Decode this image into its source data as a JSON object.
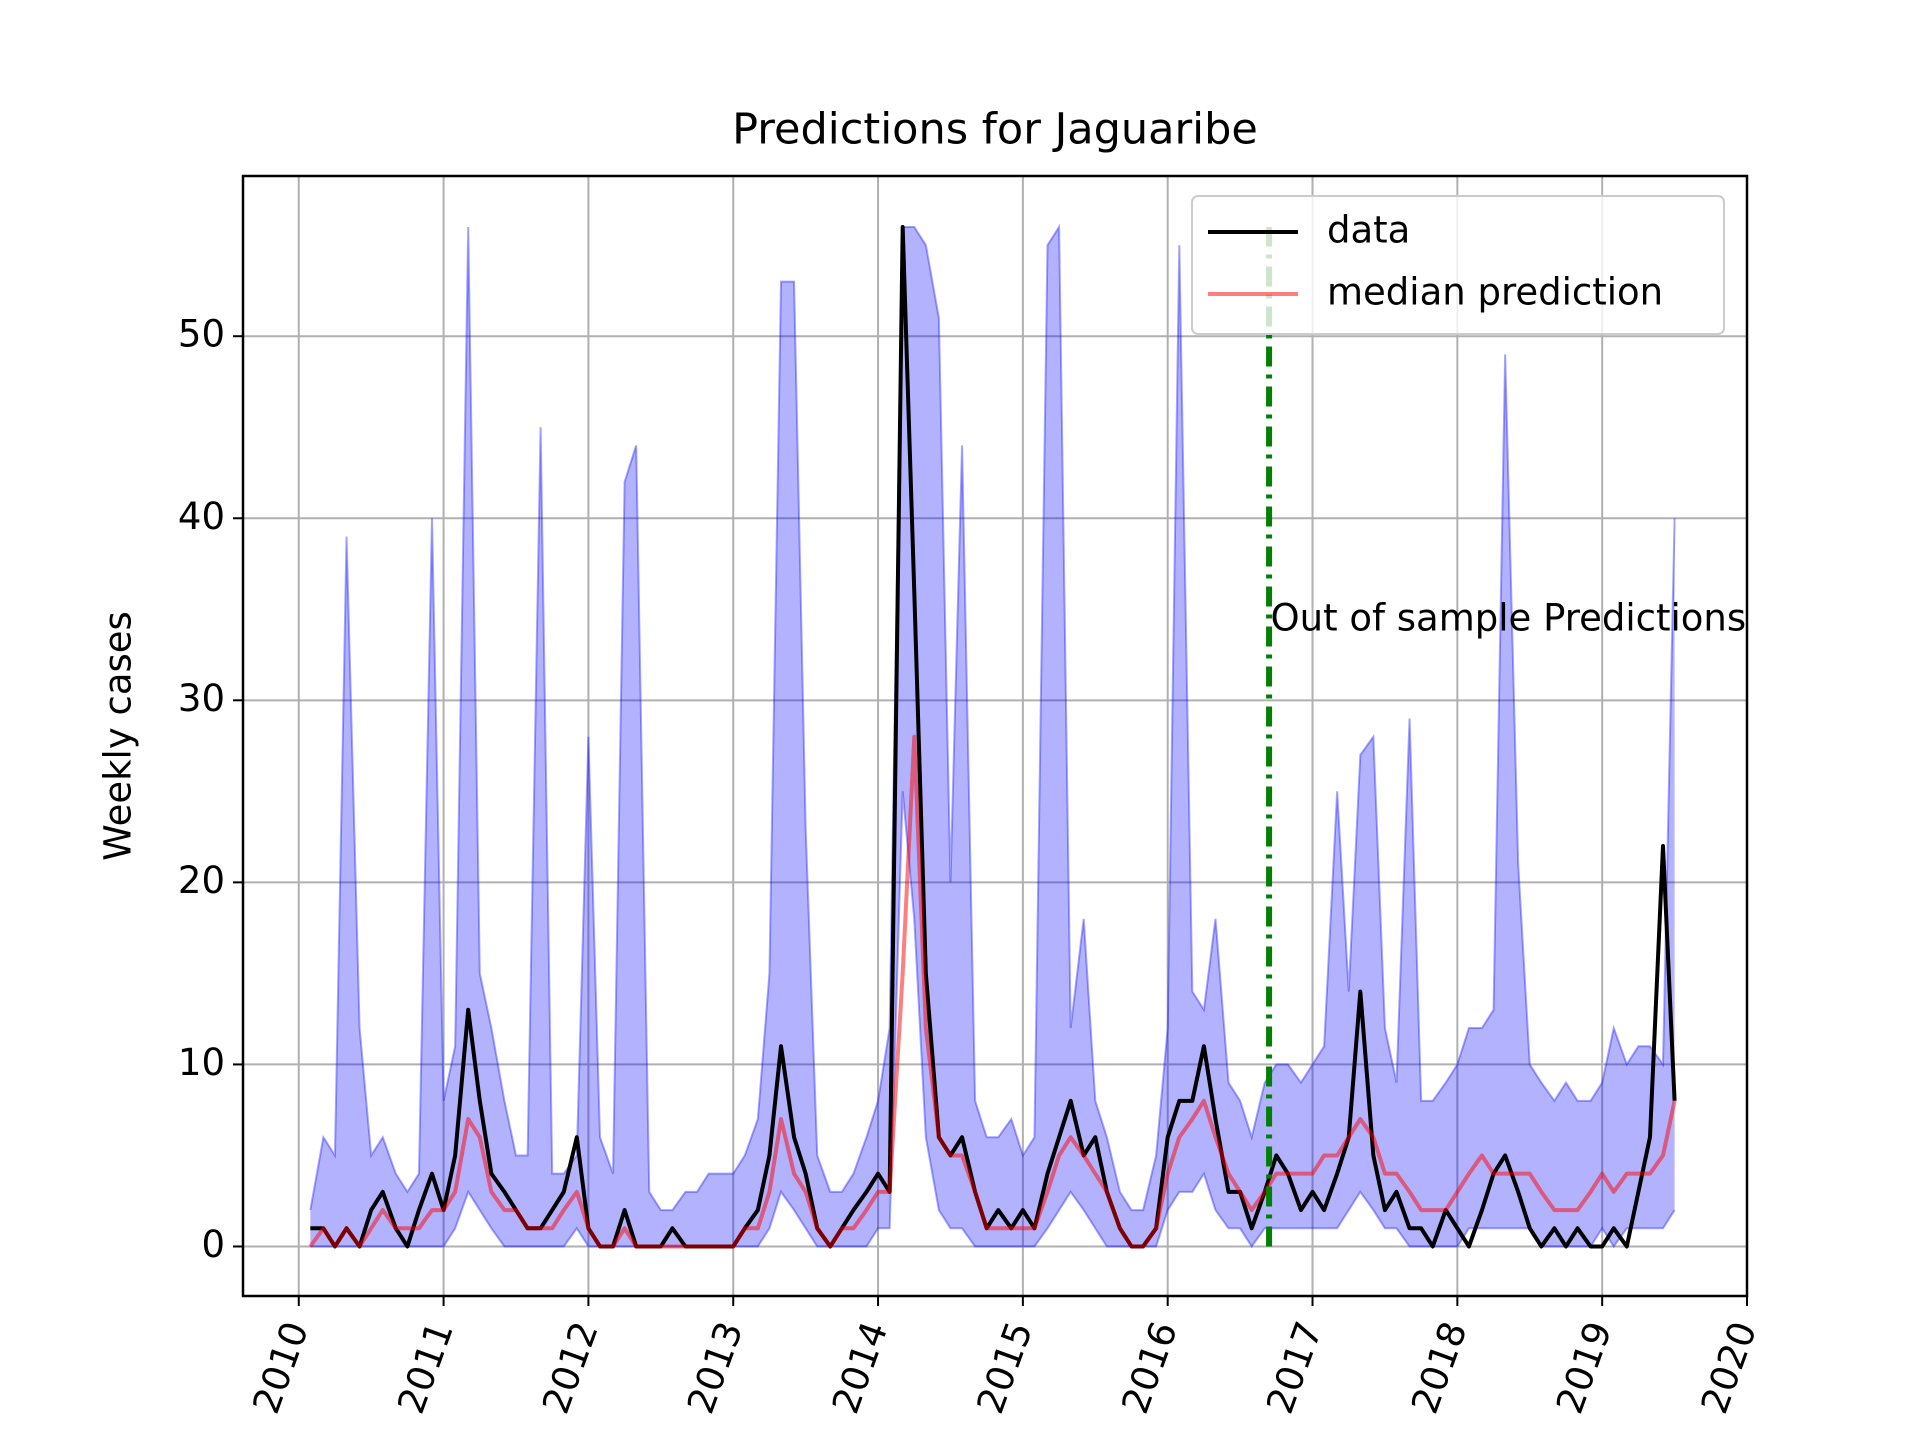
{
  "chart_data": {
    "type": "line",
    "title": "Predictions for Jaguaribe",
    "y_label": "Weekly cases",
    "annotation": {
      "text": "Out of sample Predictions",
      "x": 2016.71,
      "y": 34.4
    },
    "x": [
      2010.08,
      2010.17,
      2010.25,
      2010.33,
      2010.42,
      2010.5,
      2010.58,
      2010.67,
      2010.75,
      2010.83,
      2010.92,
      2011.0,
      2011.08,
      2011.17,
      2011.25,
      2011.33,
      2011.42,
      2011.5,
      2011.58,
      2011.67,
      2011.75,
      2011.83,
      2011.92,
      2012.0,
      2012.08,
      2012.17,
      2012.25,
      2012.33,
      2012.42,
      2012.5,
      2012.58,
      2012.67,
      2012.75,
      2012.83,
      2012.92,
      2013.0,
      2013.08,
      2013.17,
      2013.25,
      2013.33,
      2013.42,
      2013.5,
      2013.58,
      2013.67,
      2013.75,
      2013.83,
      2013.92,
      2014.0,
      2014.08,
      2014.17,
      2014.25,
      2014.33,
      2014.42,
      2014.5,
      2014.58,
      2014.67,
      2014.75,
      2014.83,
      2014.92,
      2015.0,
      2015.08,
      2015.17,
      2015.25,
      2015.33,
      2015.42,
      2015.5,
      2015.58,
      2015.67,
      2015.75,
      2015.83,
      2015.92,
      2016.0,
      2016.08,
      2016.17,
      2016.25,
      2016.33,
      2016.42,
      2016.5,
      2016.58,
      2016.67,
      2016.75,
      2016.83,
      2016.92,
      2017.0,
      2017.08,
      2017.17,
      2017.25,
      2017.33,
      2017.42,
      2017.5,
      2017.58,
      2017.67,
      2017.75,
      2017.83,
      2017.92,
      2018.0,
      2018.08,
      2018.17,
      2018.25,
      2018.33,
      2018.42,
      2018.5,
      2018.58,
      2018.67,
      2018.75,
      2018.83,
      2018.92,
      2019.0,
      2019.08,
      2019.17,
      2019.25,
      2019.33,
      2019.42,
      2019.5
    ],
    "band": {
      "color": "#0000ff",
      "lower": [
        0,
        0,
        0,
        0,
        0,
        0,
        0,
        0,
        0,
        0,
        0,
        0,
        1,
        3,
        2,
        1,
        0,
        0,
        0,
        0,
        0,
        0,
        1,
        0,
        0,
        0,
        0,
        0,
        0,
        0,
        0,
        0,
        0,
        0,
        0,
        0,
        0,
        0,
        1,
        3,
        2,
        1,
        0,
        0,
        0,
        0,
        0,
        1,
        1,
        25,
        18,
        6,
        2,
        1,
        1,
        0,
        0,
        0,
        0,
        0,
        0,
        1,
        2,
        3,
        2,
        1,
        0,
        0,
        0,
        0,
        0,
        2,
        3,
        3,
        4,
        2,
        1,
        1,
        0,
        1,
        1,
        1,
        1,
        1,
        1,
        1,
        2,
        3,
        2,
        1,
        1,
        0,
        0,
        0,
        0,
        0,
        1,
        1,
        1,
        1,
        1,
        1,
        0,
        0,
        0,
        0,
        0,
        1,
        0,
        1,
        1,
        1,
        1,
        2
      ],
      "upper": [
        2,
        6,
        5,
        39,
        12,
        5,
        6,
        4,
        3,
        4,
        40,
        8,
        11,
        56,
        15,
        12,
        8,
        5,
        5,
        45,
        4,
        4,
        5,
        28,
        6,
        4,
        42,
        44,
        3,
        2,
        2,
        3,
        3,
        4,
        4,
        4,
        5,
        7,
        15,
        53,
        53,
        23,
        5,
        3,
        3,
        4,
        6,
        8,
        12,
        56,
        56,
        55,
        51,
        20,
        44,
        8,
        6,
        6,
        7,
        5,
        6,
        55,
        56,
        12,
        18,
        8,
        6,
        3,
        2,
        2,
        5,
        12,
        55,
        14,
        13,
        18,
        9,
        8,
        6,
        9,
        10,
        10,
        9,
        10,
        11,
        25,
        14,
        27,
        28,
        12,
        9,
        29,
        8,
        8,
        9,
        10,
        12,
        12,
        13,
        49,
        21,
        10,
        9,
        8,
        9,
        8,
        8,
        9,
        12,
        10,
        11,
        11,
        10,
        40
      ]
    },
    "series": [
      {
        "name": "data",
        "color": "#000000",
        "values": [
          1,
          1,
          0,
          1,
          0,
          2,
          3,
          1,
          0,
          2,
          4,
          2,
          5,
          13,
          8,
          4,
          3,
          2,
          1,
          1,
          2,
          3,
          6,
          1,
          0,
          0,
          2,
          0,
          0,
          0,
          1,
          0,
          0,
          0,
          0,
          0,
          1,
          2,
          5,
          11,
          6,
          4,
          1,
          0,
          1,
          2,
          3,
          4,
          3,
          56,
          36,
          15,
          6,
          5,
          6,
          3,
          1,
          2,
          1,
          2,
          1,
          4,
          6,
          8,
          5,
          6,
          3,
          1,
          0,
          0,
          1,
          6,
          8,
          8,
          11,
          7,
          3,
          3,
          1,
          3,
          5,
          4,
          2,
          3,
          2,
          4,
          6,
          14,
          5,
          2,
          3,
          1,
          1,
          0,
          2,
          1,
          0,
          2,
          4,
          5,
          3,
          1,
          0,
          1,
          0,
          1,
          0,
          0,
          1,
          0,
          3,
          6,
          22,
          8
        ]
      },
      {
        "name": "median prediction",
        "color": "rgba(255,0,0,0.5)",
        "values": [
          0,
          1,
          0,
          1,
          0,
          1,
          2,
          1,
          1,
          1,
          2,
          2,
          3,
          7,
          6,
          3,
          2,
          2,
          1,
          1,
          1,
          2,
          3,
          1,
          0,
          0,
          1,
          0,
          0,
          0,
          0,
          0,
          0,
          0,
          0,
          0,
          1,
          1,
          3,
          7,
          4,
          3,
          1,
          0,
          1,
          1,
          2,
          3,
          3,
          15,
          28,
          12,
          6,
          5,
          5,
          3,
          1,
          1,
          1,
          1,
          1,
          3,
          5,
          6,
          5,
          4,
          3,
          1,
          0,
          0,
          1,
          4,
          6,
          7,
          8,
          6,
          4,
          3,
          2,
          3,
          4,
          4,
          4,
          4,
          5,
          5,
          6,
          7,
          6,
          4,
          4,
          3,
          2,
          2,
          2,
          3,
          4,
          5,
          4,
          4,
          4,
          4,
          3,
          2,
          2,
          2,
          3,
          4,
          3,
          4,
          4,
          4,
          5,
          8
        ]
      }
    ],
    "vline": {
      "x": 2016.7,
      "y": [
        0,
        56
      ],
      "color": "#008000"
    },
    "xlim": [
      2009.615,
      2020.0
    ],
    "xticks": [
      2010,
      2011,
      2012,
      2013,
      2014,
      2015,
      2016,
      2017,
      2018,
      2019,
      2020
    ],
    "ylim": [
      -2.72,
      58.8
    ],
    "yticks": [
      0,
      10,
      20,
      30,
      40,
      50
    ],
    "grid": true,
    "legend": "upper right"
  }
}
